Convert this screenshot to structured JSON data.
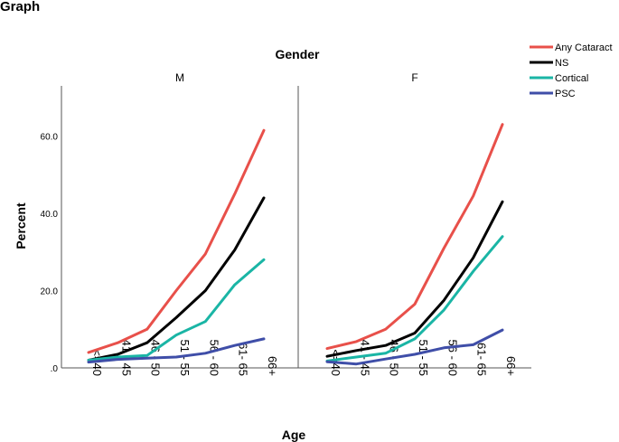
{
  "window_title": "Graph",
  "chart_data": {
    "type": "line",
    "title": "Gender",
    "panels": [
      "M",
      "F"
    ],
    "xlabel": "Age",
    "ylabel": "Percent",
    "ylim": [
      0,
      73
    ],
    "yticks": [
      0,
      20,
      40,
      60
    ],
    "ytick_labels": [
      ".0",
      "20.0",
      "40.0",
      "60.0"
    ],
    "categories": [
      "<=40",
      "41 - 45",
      "46 - 50",
      "51 - 55",
      "56 - 60",
      "61- 65",
      "66+"
    ],
    "legend_position": "top-right",
    "series": [
      {
        "name": "Any Cataract",
        "color": "#e8504a",
        "values": {
          "M": [
            4.0,
            6.5,
            10.0,
            20.0,
            29.5,
            45.0,
            61.5
          ],
          "F": [
            5.0,
            6.8,
            10.0,
            16.5,
            31.0,
            44.5,
            63.0
          ]
        }
      },
      {
        "name": "NS",
        "color": "#000000",
        "values": {
          "M": [
            2.0,
            3.5,
            6.5,
            13.0,
            20.0,
            30.5,
            44.0
          ],
          "F": [
            3.0,
            4.5,
            5.8,
            9.0,
            17.5,
            28.5,
            43.0
          ]
        }
      },
      {
        "name": "Cortical",
        "color": "#1ab5a5",
        "values": {
          "M": [
            2.0,
            2.8,
            3.2,
            8.5,
            12.0,
            21.5,
            28.0
          ],
          "F": [
            1.8,
            2.8,
            3.8,
            7.5,
            15.0,
            25.0,
            34.0
          ]
        }
      },
      {
        "name": "PSC",
        "color": "#3f4ea8",
        "values": {
          "M": [
            1.5,
            2.2,
            2.5,
            2.8,
            3.8,
            5.8,
            7.5
          ],
          "F": [
            1.6,
            1.0,
            2.3,
            3.5,
            5.2,
            6.0,
            9.8
          ]
        }
      }
    ]
  }
}
